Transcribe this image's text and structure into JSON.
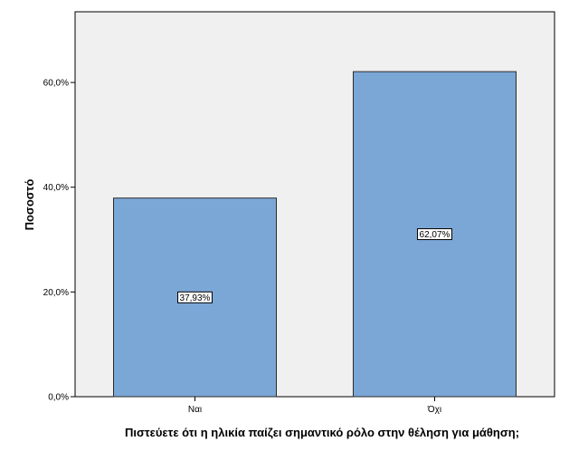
{
  "chart_data": {
    "type": "bar",
    "categories": [
      "Ναι",
      "Όχι"
    ],
    "values": [
      37.93,
      62.07
    ],
    "data_labels": [
      "37,93%",
      "62,07%"
    ],
    "ylabel": "Ποσοστό",
    "xlabel": "Πιστεύετε ότι η ηλικία παίζει σημαντικό ρόλο στην θέληση για μάθηση;",
    "ylim": [
      0,
      73.5
    ],
    "yticks": [
      0,
      20,
      40,
      60
    ],
    "ytick_labels": [
      "0,0%",
      "20,0%",
      "40,0%",
      "60,0%"
    ],
    "grid": false,
    "legend": "none"
  },
  "colors": {
    "bar_fill": "#7BA7D6",
    "bar_stroke": "#2B2B2B",
    "plot_background": "#F0F0F0",
    "axis": "#000000",
    "label_box_fill": "#FFFFFF"
  }
}
